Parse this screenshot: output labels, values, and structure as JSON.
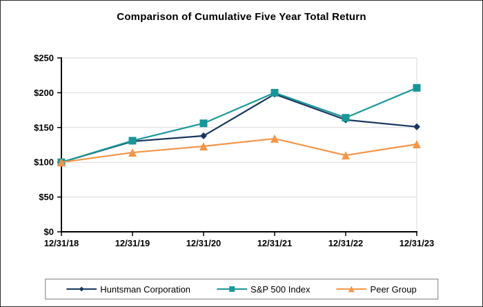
{
  "title": "Comparison of Cumulative Five Year Total Return",
  "chart_data": {
    "type": "line",
    "title": "Comparison of Cumulative Five Year Total Return",
    "x": [
      "12/31/18",
      "12/31/19",
      "12/31/20",
      "12/31/21",
      "12/31/22",
      "12/31/23"
    ],
    "series": [
      {
        "name": "Huntsman Corporation",
        "marker": "diamond",
        "color": "#17375E",
        "values": [
          100,
          130,
          138,
          198,
          161,
          151
        ]
      },
      {
        "name": "S&P 500 Index",
        "marker": "square",
        "color": "#1A9698",
        "values": [
          100,
          131,
          156,
          200,
          164,
          207
        ]
      },
      {
        "name": "Peer Group",
        "marker": "triangle",
        "color": "#F2964A",
        "values": [
          100,
          114,
          123,
          134,
          110,
          126
        ]
      }
    ],
    "xlabel": "",
    "ylabel": "",
    "ylim": [
      0,
      250
    ],
    "ytick_step": 50,
    "ytick_labels": [
      "$0",
      "$50",
      "$100",
      "$150",
      "$200",
      "$250"
    ],
    "grid": true,
    "legend_position": "bottom",
    "layout": {
      "gridline_color": "#D9D9D9",
      "plot_border_color": "#D9D9D9",
      "axis_color": "#000000",
      "legend_border_color": "#7f7f7f",
      "background_color": "#FFFFFF"
    }
  }
}
